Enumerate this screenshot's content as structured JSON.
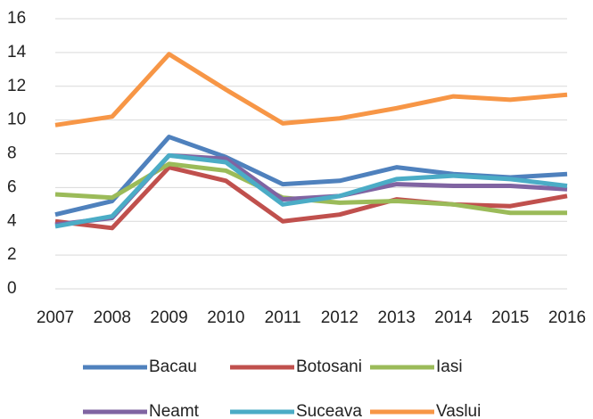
{
  "chart_data": {
    "type": "line",
    "categories": [
      "2007",
      "2008",
      "2009",
      "2010",
      "2011",
      "2012",
      "2013",
      "2014",
      "2015",
      "2016"
    ],
    "series": [
      {
        "name": "Bacau",
        "color": "#4f81bd",
        "values": [
          4.4,
          5.2,
          9.0,
          7.8,
          6.2,
          6.4,
          7.2,
          6.8,
          6.6,
          6.8
        ]
      },
      {
        "name": "Botosani",
        "color": "#c0504d",
        "values": [
          4.0,
          3.6,
          7.2,
          6.4,
          4.0,
          4.4,
          5.3,
          5.0,
          4.9,
          5.5
        ]
      },
      {
        "name": "Iasi",
        "color": "#9bbb59",
        "values": [
          5.6,
          5.4,
          7.4,
          7.0,
          5.4,
          5.1,
          5.2,
          5.0,
          4.5,
          4.5
        ]
      },
      {
        "name": "Neamt",
        "color": "#8064a2",
        "values": [
          3.8,
          4.2,
          7.9,
          7.7,
          5.3,
          5.5,
          6.2,
          6.1,
          6.1,
          5.9
        ]
      },
      {
        "name": "Suceava",
        "color": "#4bacc6",
        "values": [
          3.7,
          4.3,
          7.9,
          7.5,
          5.0,
          5.5,
          6.5,
          6.7,
          6.5,
          6.1
        ]
      },
      {
        "name": "Vaslui",
        "color": "#f79646",
        "values": [
          9.7,
          10.2,
          13.9,
          11.8,
          9.8,
          10.1,
          10.7,
          11.4,
          11.2,
          11.5
        ]
      }
    ],
    "ylim": [
      0,
      16
    ],
    "yticks": [
      0,
      2,
      4,
      6,
      8,
      10,
      12,
      14,
      16
    ],
    "grid": true,
    "legend": "bottom"
  }
}
